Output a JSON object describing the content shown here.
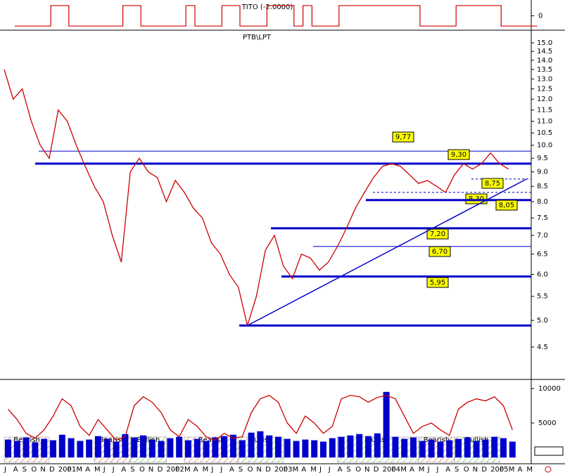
{
  "chart_data": {
    "type": "line",
    "title": "PTB\\LPT",
    "log_scale": true,
    "color": "#cc0000",
    "categories": [
      "J",
      "A",
      "S",
      "O",
      "N",
      "D",
      "2001",
      "F",
      "M",
      "A",
      "M",
      "J",
      "J",
      "A",
      "S",
      "O",
      "N",
      "D",
      "2002",
      "F",
      "M",
      "A",
      "M",
      "J",
      "J",
      "A",
      "S",
      "O",
      "N",
      "D",
      "2003",
      "F",
      "M",
      "A",
      "M",
      "J",
      "J",
      "A",
      "S",
      "O",
      "N",
      "D",
      "2004",
      "F",
      "M",
      "A",
      "M",
      "J",
      "J",
      "A",
      "S",
      "O",
      "N",
      "D",
      "2005",
      "F",
      "M",
      "A",
      "M"
    ],
    "values": [
      13.5,
      12.0,
      12.5,
      11.0,
      10.0,
      9.5,
      11.5,
      11.0,
      10.0,
      9.2,
      8.5,
      8.0,
      7.0,
      6.3,
      9.0,
      9.5,
      9.0,
      8.8,
      8.0,
      8.7,
      8.3,
      7.8,
      7.5,
      6.8,
      6.5,
      6.0,
      5.7,
      4.9,
      5.5,
      6.6,
      7.0,
      6.2,
      5.9,
      6.5,
      6.4,
      6.1,
      6.3,
      6.7,
      7.2,
      7.8,
      8.3,
      8.8,
      9.2,
      9.3,
      9.2,
      8.9,
      8.6,
      8.7,
      8.5,
      8.3,
      8.9,
      9.3,
      9.1,
      9.3,
      9.7,
      9.3,
      9.1,
      null,
      null
    ],
    "ylim": [
      4.07,
      15.68
    ],
    "yticks": [
      {
        "value": 4.5,
        "label": "4.5"
      },
      {
        "value": 5.0,
        "label": "5.0"
      },
      {
        "value": 5.5,
        "label": "5.5"
      },
      {
        "value": 6.0,
        "label": "6.0"
      },
      {
        "value": 6.5,
        "label": "6.5"
      },
      {
        "value": 7.0,
        "label": "7.0"
      },
      {
        "value": 7.5,
        "label": "7.5"
      },
      {
        "value": 8.0,
        "label": "8.0"
      },
      {
        "value": 8.5,
        "label": "8.5"
      },
      {
        "value": 9.0,
        "label": "9.0"
      },
      {
        "value": 9.5,
        "label": "9.5"
      },
      {
        "value": 10.0,
        "label": "10.0"
      },
      {
        "value": 10.5,
        "label": "10.5"
      },
      {
        "value": 11.0,
        "label": "11.0"
      },
      {
        "value": 11.5,
        "label": "11.5"
      },
      {
        "value": 12.0,
        "label": "12.0"
      },
      {
        "value": 12.5,
        "label": "12.5"
      },
      {
        "value": 13.0,
        "label": "13.0"
      },
      {
        "value": 13.5,
        "label": "13.5"
      },
      {
        "value": 14.0,
        "label": "14.0"
      },
      {
        "value": 14.5,
        "label": "14.5"
      },
      {
        "value": 15.0,
        "label": "15.0"
      }
    ],
    "levels": [
      {
        "value": 9.77,
        "label": "9,77",
        "style": "thin"
      },
      {
        "value": 9.3,
        "label": "9,30",
        "style": "thick"
      },
      {
        "value": 8.75,
        "label": "8,75",
        "style": "dashed"
      },
      {
        "value": 8.3,
        "label": "8,30",
        "style": "dashed"
      },
      {
        "value": 8.05,
        "label": "8,05",
        "style": "thick"
      },
      {
        "value": 7.2,
        "label": "7,20",
        "style": "thick"
      },
      {
        "value": 6.7,
        "label": "6,70",
        "style": "thin"
      },
      {
        "value": 5.95,
        "label": "5,95",
        "style": "thick"
      },
      {
        "value": 4.9,
        "label": null,
        "style": "thick"
      }
    ],
    "trendline": {
      "start": [
        27,
        4.9
      ],
      "end": [
        58,
        8.75
      ]
    },
    "tito": {
      "title": "TITO (-2.0000)",
      "color": "#cc0000",
      "values": [
        -1,
        -1,
        -1,
        -1,
        -1,
        1,
        1,
        -1,
        -1,
        -1,
        -1,
        -1,
        -1,
        1,
        1,
        -1,
        -1,
        -1,
        -1,
        -1,
        1,
        -1,
        -1,
        -1,
        1,
        1,
        -1,
        -1,
        -1,
        1,
        1,
        1,
        -1,
        1,
        -1,
        -1,
        -1,
        1,
        1,
        1,
        1,
        1,
        1,
        1,
        1,
        1,
        -1,
        -1,
        -1,
        -1,
        1,
        1,
        1,
        1,
        1,
        -1,
        -1,
        -1,
        -1
      ],
      "ylim": [
        -1.2,
        1.2
      ],
      "yticks": [
        0
      ]
    },
    "volume": {
      "color": "#0000cc",
      "values": [
        2600,
        2400,
        2900,
        2200,
        2700,
        2500,
        3300,
        2800,
        2400,
        2600,
        3100,
        2700,
        2300,
        3400,
        2900,
        3200,
        2600,
        2400,
        2800,
        3000,
        2500,
        2700,
        2400,
        2900,
        3100,
        3300,
        2500,
        3600,
        3800,
        3200,
        3000,
        2700,
        2400,
        2600,
        2500,
        2300,
        2800,
        3000,
        3200,
        3400,
        3100,
        3500,
        9500,
        3000,
        2700,
        2900,
        2400,
        2600,
        2300,
        2500,
        2700,
        2900,
        2400,
        2600,
        3000,
        2800,
        2300,
        null,
        null
      ],
      "oscillator": {
        "color": "#cc0000",
        "values": [
          7000,
          5500,
          3500,
          2800,
          4000,
          6000,
          8500,
          7500,
          4500,
          3200,
          5500,
          4000,
          2500,
          3000,
          7500,
          8800,
          8000,
          6500,
          4000,
          3000,
          5500,
          4500,
          3000,
          2500,
          3500,
          2800,
          3000,
          6500,
          8500,
          9000,
          8000,
          5000,
          3500,
          6000,
          5000,
          3500,
          4500,
          8500,
          9000,
          8800,
          8000,
          8700,
          9000,
          8500,
          6000,
          3500,
          4500,
          5000,
          4000,
          3200,
          7000,
          8000,
          8500,
          8200,
          8800,
          7500,
          4000,
          null,
          null
        ]
      },
      "ylim": [
        -700,
        11000
      ],
      "yticks": [
        5000,
        10000
      ],
      "regimes": [
        {
          "label": "Bearish",
          "from": 0,
          "to": 5
        },
        {
          "label": "Bearish",
          "from": 10,
          "to": 14
        },
        {
          "label": "Bullish",
          "from": 14,
          "to": 18
        },
        {
          "label": "Bearish",
          "from": 20,
          "to": 26
        },
        {
          "label": "Bullish",
          "from": 26,
          "to": 31
        },
        {
          "label": "Bullish",
          "from": 37,
          "to": 46
        },
        {
          "label": "Bearish",
          "from": 46,
          "to": 50
        },
        {
          "label": "Bullish",
          "from": 50,
          "to": 55
        }
      ]
    }
  }
}
